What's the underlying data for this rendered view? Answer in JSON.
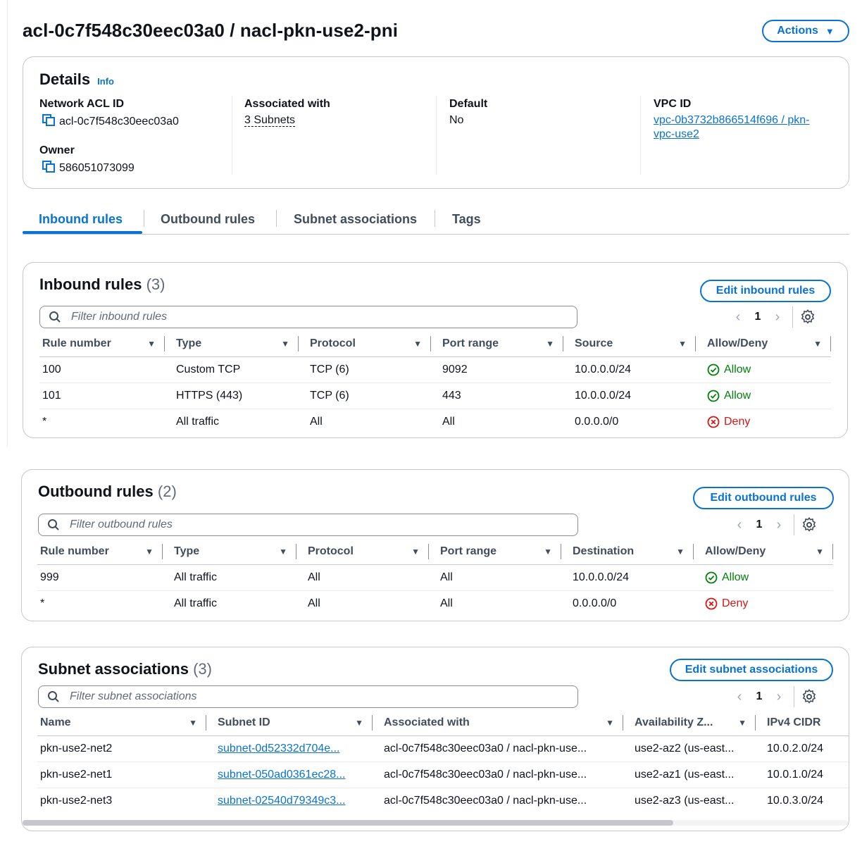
{
  "page": {
    "title": "acl-0c7f548c30eec03a0 / nacl-pkn-use2-pni",
    "actions_label": "Actions"
  },
  "colors": {
    "accent": "#0972d3",
    "allow": "#037f0c",
    "deny": "#d91515"
  },
  "details": {
    "heading": "Details",
    "info": "Info",
    "network_acl_id_label": "Network ACL ID",
    "network_acl_id": "acl-0c7f548c30eec03a0",
    "owner_label": "Owner",
    "owner": "586051073099",
    "associated_label": "Associated with",
    "associated": "3 Subnets",
    "default_label": "Default",
    "default": "No",
    "vpc_label": "VPC ID",
    "vpc_line1": "vpc-0b3732b866514f696 / pkn-",
    "vpc_line2": "vpc-use2"
  },
  "tabs": [
    "Inbound rules",
    "Outbound rules",
    "Subnet associations",
    "Tags"
  ],
  "inbound": {
    "title": "Inbound rules",
    "count": "(3)",
    "edit_label": "Edit inbound rules",
    "filter_placeholder": "Filter inbound rules",
    "page": "1",
    "columns": [
      "Rule number",
      "Type",
      "Protocol",
      "Port range",
      "Source",
      "Allow/Deny"
    ],
    "rows": [
      [
        "100",
        "Custom TCP",
        "TCP (6)",
        "9092",
        "10.0.0.0/24",
        "Allow"
      ],
      [
        "101",
        "HTTPS (443)",
        "TCP (6)",
        "443",
        "10.0.0.0/24",
        "Allow"
      ],
      [
        "*",
        "All traffic",
        "All",
        "All",
        "0.0.0.0/0",
        "Deny"
      ]
    ]
  },
  "outbound": {
    "title": "Outbound rules",
    "count": "(2)",
    "edit_label": "Edit outbound rules",
    "filter_placeholder": "Filter outbound rules",
    "page": "1",
    "columns": [
      "Rule number",
      "Type",
      "Protocol",
      "Port range",
      "Destination",
      "Allow/Deny"
    ],
    "rows": [
      [
        "999",
        "All traffic",
        "All",
        "All",
        "10.0.0.0/24",
        "Allow"
      ],
      [
        "*",
        "All traffic",
        "All",
        "All",
        "0.0.0.0/0",
        "Deny"
      ]
    ]
  },
  "subnets": {
    "title": "Subnet associations",
    "count": "(3)",
    "edit_label": "Edit subnet associations",
    "filter_placeholder": "Filter subnet associations",
    "page": "1",
    "columns": [
      "Name",
      "Subnet ID",
      "Associated with",
      "Availability Z...",
      "IPv4 CIDR"
    ],
    "rows": [
      [
        "pkn-use2-net2",
        "subnet-0d52332d704e...",
        "acl-0c7f548c30eec03a0 / nacl-pkn-use...",
        "use2-az2 (us-east...",
        "10.0.2.0/24"
      ],
      [
        "pkn-use2-net1",
        "subnet-050ad0361ec28...",
        "acl-0c7f548c30eec03a0 / nacl-pkn-use...",
        "use2-az1 (us-east...",
        "10.0.1.0/24"
      ],
      [
        "pkn-use2-net3",
        "subnet-02540d79349c3...",
        "acl-0c7f548c30eec03a0 / nacl-pkn-use...",
        "use2-az3 (us-east...",
        "10.0.3.0/24"
      ]
    ]
  }
}
